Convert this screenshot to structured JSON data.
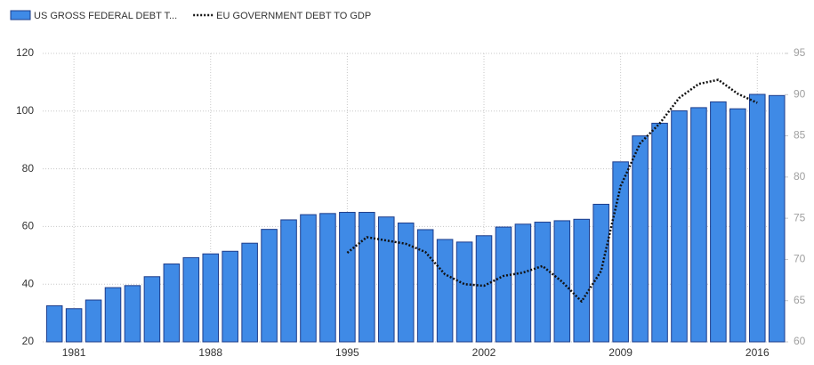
{
  "chart_data": {
    "type": "bar_line",
    "x": [
      1980,
      1981,
      1982,
      1983,
      1984,
      1985,
      1986,
      1987,
      1988,
      1989,
      1990,
      1991,
      1992,
      1993,
      1994,
      1995,
      1996,
      1997,
      1998,
      1999,
      2000,
      2001,
      2002,
      2003,
      2004,
      2005,
      2006,
      2007,
      2008,
      2009,
      2010,
      2011,
      2012,
      2013,
      2014,
      2015,
      2016,
      2017
    ],
    "series": [
      {
        "name": "US GROSS FEDERAL DEBT T...",
        "color": "#3f8ae6",
        "type": "bar",
        "axis": "y",
        "values": [
          32.5,
          31.5,
          34.5,
          38.8,
          39.5,
          42.6,
          47,
          49.2,
          50.5,
          51.4,
          54.2,
          59,
          62.3,
          64.1,
          64.5,
          64.9,
          64.9,
          63.3,
          61.2,
          58.9,
          55.5,
          54.6,
          56.8,
          59.8,
          60.8,
          61.5,
          62,
          62.5,
          67.7,
          82.4,
          91.4,
          95.8,
          100.1,
          101.2,
          103.2,
          100.8,
          105.8,
          105.4
        ]
      },
      {
        "name": "EU GOVERNMENT DEBT TO GDP",
        "color": "#111111",
        "type": "line",
        "axis": "y2",
        "values": [
          null,
          null,
          null,
          null,
          null,
          null,
          null,
          null,
          null,
          null,
          null,
          null,
          null,
          null,
          null,
          70.8,
          72.7,
          72.3,
          71.9,
          70.9,
          68.2,
          67.0,
          66.8,
          68.0,
          68.4,
          69.2,
          67.3,
          64.9,
          68.6,
          78.9,
          84.1,
          86.5,
          89.6,
          91.3,
          91.8,
          90.1,
          89.0,
          null
        ]
      }
    ],
    "xlim": [
      1979.4,
      2017.4
    ],
    "xticks": [
      1981,
      1988,
      1995,
      2002,
      2009,
      2016
    ],
    "ylim": [
      20,
      120
    ],
    "yticks": [
      20,
      40,
      60,
      80,
      100,
      120
    ],
    "y2lim": [
      60,
      95
    ],
    "y2ticks": [
      60,
      65,
      70,
      75,
      80,
      85,
      90,
      95
    ],
    "grid": true,
    "legend": "top-left"
  }
}
